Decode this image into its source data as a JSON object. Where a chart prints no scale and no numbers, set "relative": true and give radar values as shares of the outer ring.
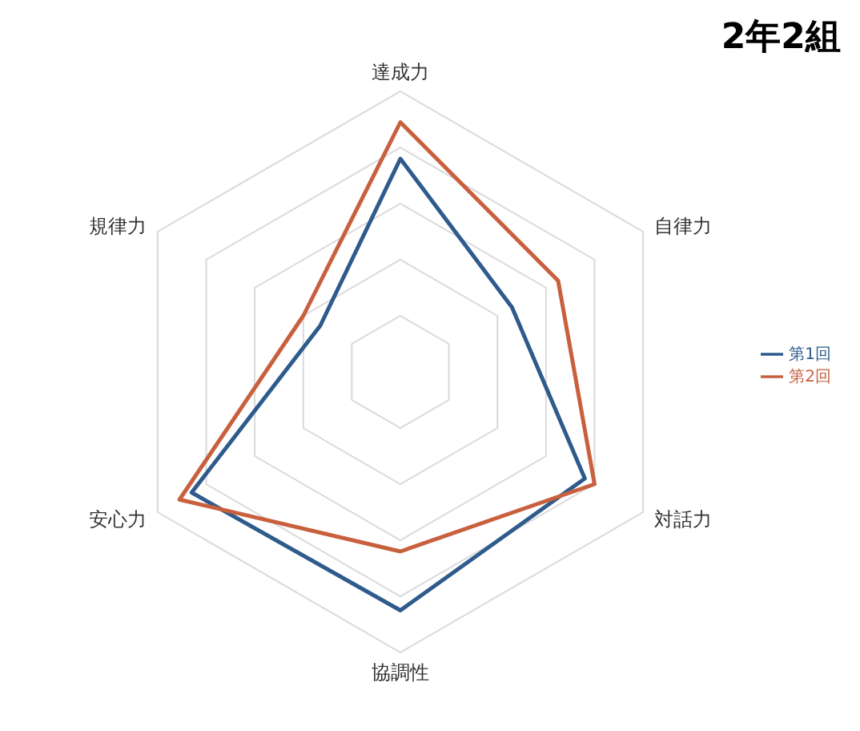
{
  "chart_data": {
    "type": "radar",
    "title": "2年2組",
    "categories": [
      "達成力",
      "自律力",
      "対話力",
      "協調性",
      "安心力",
      "規律力"
    ],
    "relative": true,
    "legend": "right",
    "grid": true,
    "series": [
      {
        "name": "第1回",
        "color": "#2e5b8c",
        "values": [
          0.76,
          0.46,
          0.76,
          0.85,
          0.86,
          0.33
        ]
      },
      {
        "name": "第2回",
        "color": "#c8603e",
        "values": [
          0.89,
          0.65,
          0.8,
          0.64,
          0.91,
          0.4
        ]
      }
    ]
  }
}
